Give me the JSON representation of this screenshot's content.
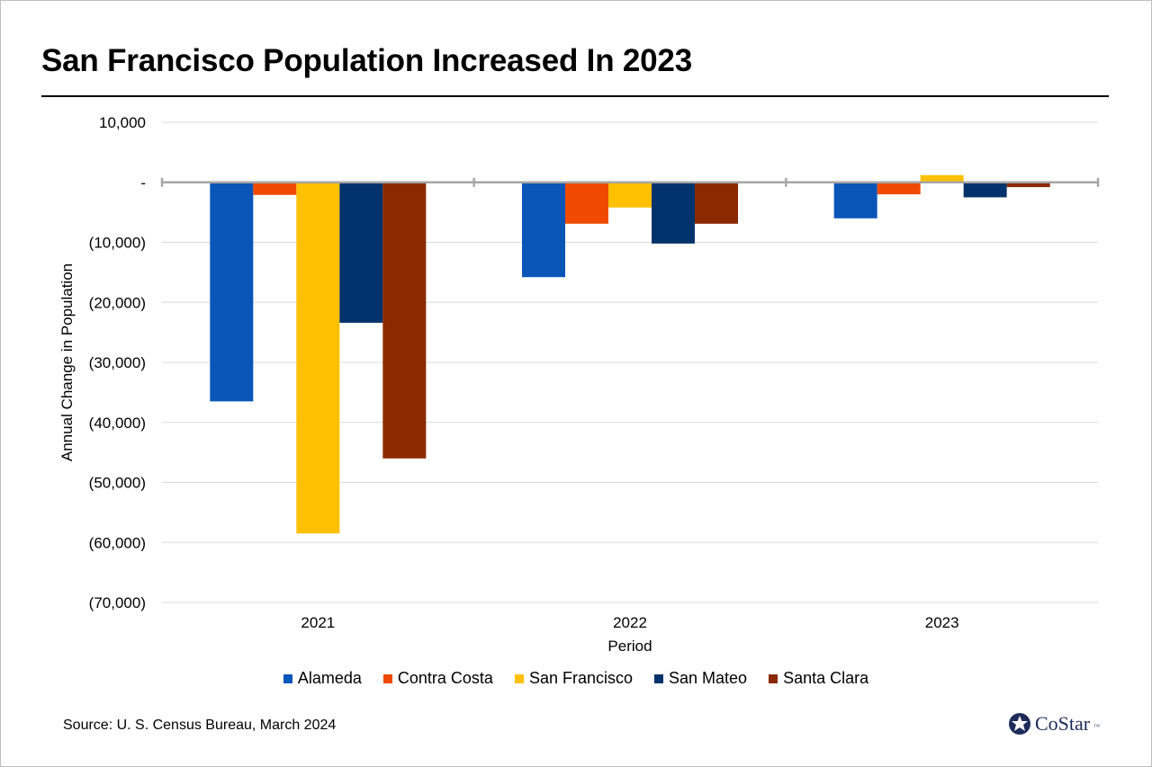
{
  "title": "San Francisco Population Increased In 2023",
  "source": "Source: U. S. Census Bureau, March 2024",
  "logo": {
    "name": "CoStar",
    "tm": "™"
  },
  "chart_data": {
    "type": "bar",
    "title": "San Francisco Population Increased In 2023",
    "xlabel": "Period",
    "ylabel": "Annual Change in Population",
    "ylim": [
      -70000,
      10000
    ],
    "ytick_values": [
      10000,
      0,
      -10000,
      -20000,
      -30000,
      -40000,
      -50000,
      -60000,
      -70000
    ],
    "ytick_labels": [
      "10,000",
      "-",
      "(10,000)",
      "(20,000)",
      "(30,000)",
      "(40,000)",
      "(50,000)",
      "(60,000)",
      "(70,000)"
    ],
    "categories": [
      "2021",
      "2022",
      "2023"
    ],
    "legend_position": "bottom",
    "grid": true,
    "series": [
      {
        "name": "Alameda",
        "color": "#0a55b8",
        "values": [
          -36500,
          -15800,
          -6000
        ]
      },
      {
        "name": "Contra Costa",
        "color": "#f04a00",
        "values": [
          -2100,
          -6900,
          -2000
        ]
      },
      {
        "name": "San Francisco",
        "color": "#ffc000",
        "values": [
          -58500,
          -4200,
          1200
        ]
      },
      {
        "name": "San Mateo",
        "color": "#00336b",
        "values": [
          -23400,
          -10200,
          -2500
        ]
      },
      {
        "name": "Santa Clara",
        "color": "#8b2900",
        "values": [
          -46000,
          -6900,
          -800
        ]
      }
    ]
  }
}
